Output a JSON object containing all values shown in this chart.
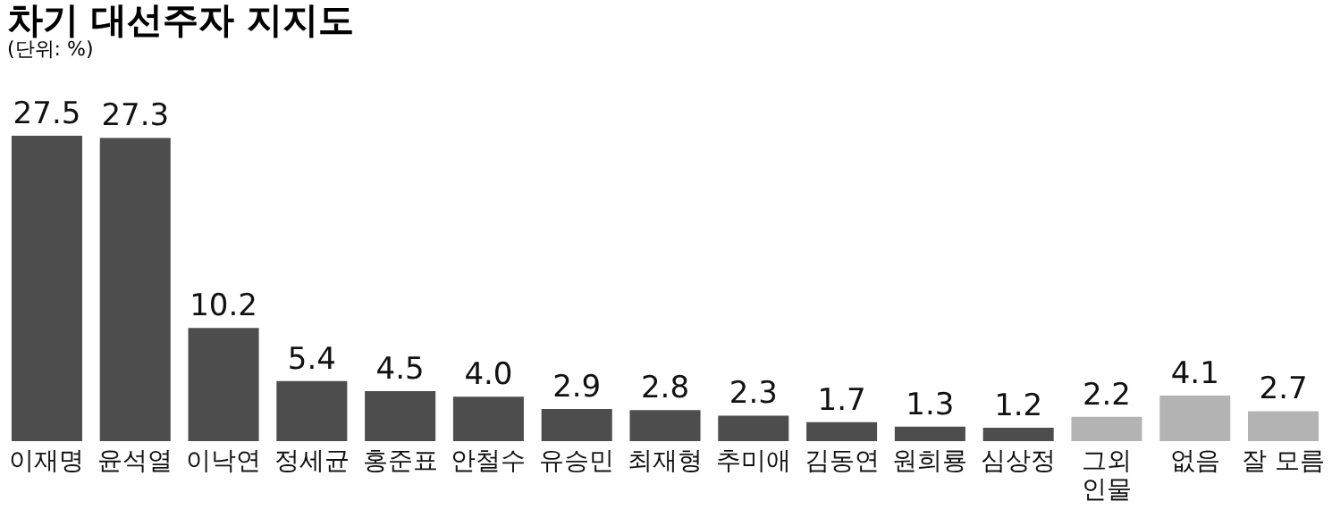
{
  "chart_data": {
    "type": "bar",
    "title": "차기 대선주자 지지도",
    "subtitle": "(단위: %)",
    "categories": [
      "이재명",
      "윤석열",
      "이낙연",
      "정세균",
      "홍준표",
      "안철수",
      "유승민",
      "최재형",
      "추미애",
      "김동연",
      "원희룡",
      "심상정",
      "그외\n인물",
      "없음",
      "잘 모름"
    ],
    "values": [
      27.5,
      27.3,
      10.2,
      5.4,
      4.5,
      4.0,
      2.9,
      2.8,
      2.3,
      1.7,
      1.3,
      1.2,
      2.2,
      4.1,
      2.7
    ],
    "colors": [
      "#4d4d4d",
      "#4d4d4d",
      "#4d4d4d",
      "#4d4d4d",
      "#4d4d4d",
      "#4d4d4d",
      "#4d4d4d",
      "#4d4d4d",
      "#4d4d4d",
      "#4d4d4d",
      "#4d4d4d",
      "#4d4d4d",
      "#b3b3b3",
      "#b3b3b3",
      "#b3b3b3"
    ],
    "value_labels": [
      "27.5",
      "27.3",
      "10.2",
      "5.4",
      "4.5",
      "4.0",
      "2.9",
      "2.8",
      "2.3",
      "1.7",
      "1.3",
      "1.2",
      "2.2",
      "4.1",
      "2.7"
    ]
  }
}
